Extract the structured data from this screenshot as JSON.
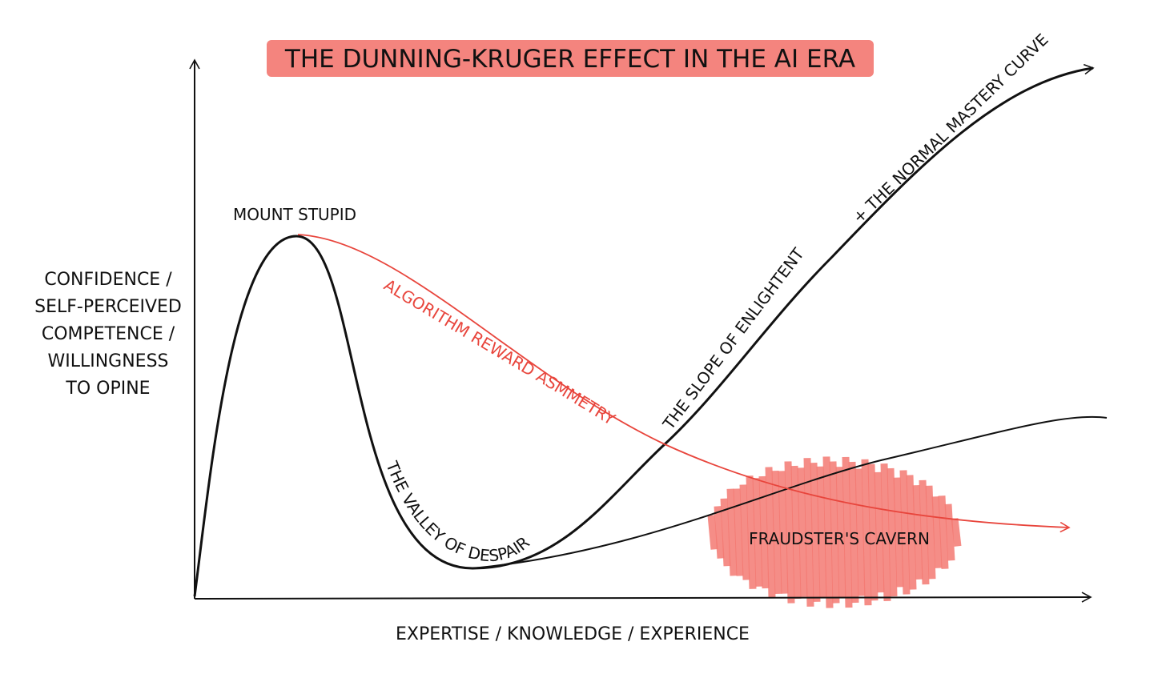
{
  "title": "THE DUNNING-KRUGER EFFECT IN THE AI ERA",
  "y_axis_label": [
    "CONFIDENCE /",
    "SELF-PERCEIVED",
    "COMPETENCE /",
    "WILLINGNESS",
    "TO OPINE"
  ],
  "x_axis_label": "EXPERTISE / KNOWLEDGE / EXPERIENCE",
  "annotations": {
    "mount_stupid": "MOUNT STUPID",
    "algorithm": "ALGORITHM REWARD ASMMETRY",
    "valley": "THE VALLEY OF DESPAIR",
    "slope": "THE SLOPE OF ENLIGHTENT",
    "mastery": "+ THE NORMAL MASTERY CURVE",
    "cavern": "FRAUDSTER'S CAVERN"
  }
}
